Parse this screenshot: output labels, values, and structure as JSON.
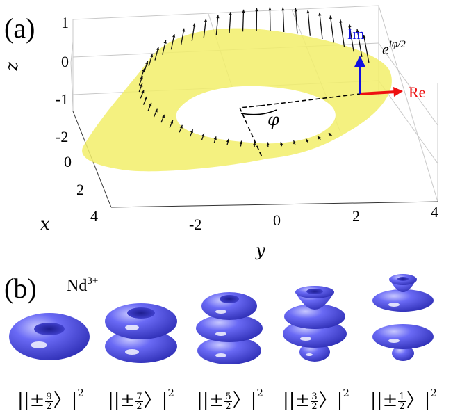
{
  "panel_a": {
    "label": "(a)",
    "z_axis": {
      "title": "z",
      "ticks": [
        "1",
        "0",
        "-1"
      ]
    },
    "x_axis": {
      "title": "x",
      "ticks": [
        "-2",
        "0",
        "2",
        "4"
      ]
    },
    "y_axis": {
      "title": "y",
      "ticks": [
        "-2",
        "0",
        "2",
        "4"
      ]
    },
    "phase_label": "e",
    "phase_exponent": "iφ/2",
    "imag_label": "Im",
    "real_label": "Re",
    "angle_label": "φ",
    "colors": {
      "surface": "#f2ee6a",
      "im_arrow": "#1010e0",
      "re_arrow": "#ee1111",
      "vector": "#111111"
    }
  },
  "panel_b": {
    "label": "(b)",
    "ion": "Nd",
    "ion_charge": "3+",
    "shape_color": "#5a5aee",
    "states": [
      {
        "pm": "±",
        "num": "9",
        "den": "2",
        "power": "2"
      },
      {
        "pm": "±",
        "num": "7",
        "den": "2",
        "power": "2"
      },
      {
        "pm": "±",
        "num": "5",
        "den": "2",
        "power": "2"
      },
      {
        "pm": "±",
        "num": "3",
        "den": "2",
        "power": "2"
      },
      {
        "pm": "±",
        "num": "1",
        "den": "2",
        "power": "2"
      }
    ]
  }
}
